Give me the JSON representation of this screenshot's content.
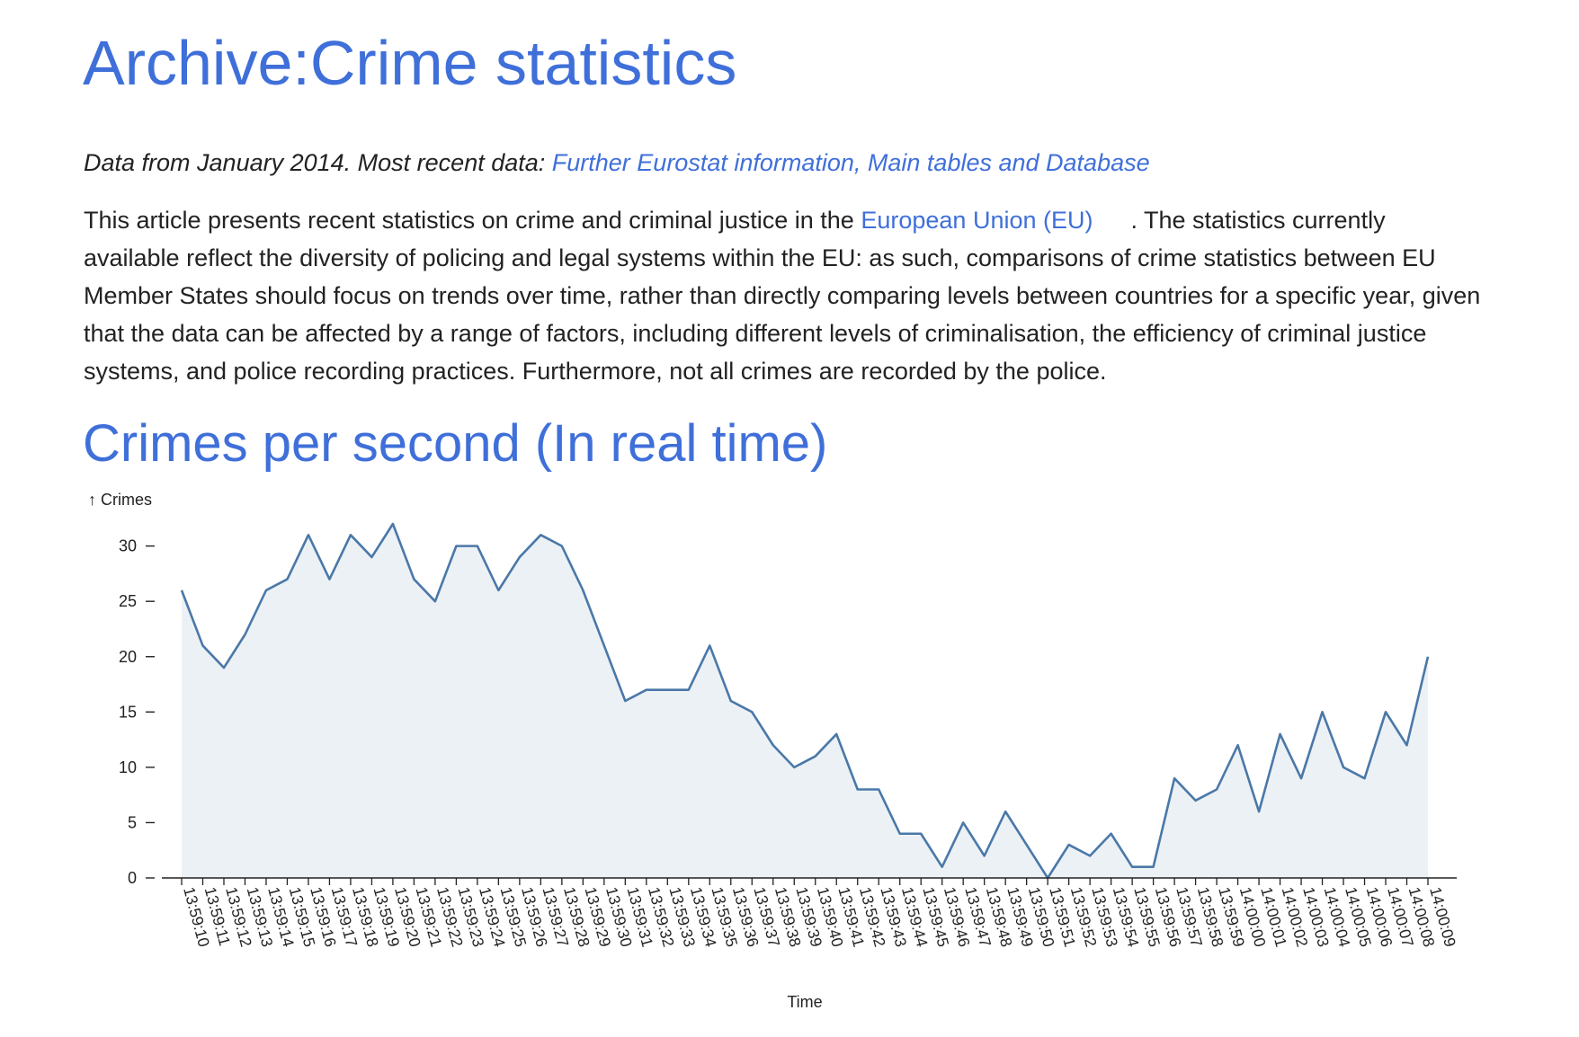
{
  "page": {
    "title": "Archive:Crime statistics",
    "source_prefix": "Data from January 2014. Most recent data: ",
    "source_link": "Further Eurostat information, Main tables and Database",
    "intro_before": "This article presents recent statistics on crime and criminal justice in the ",
    "intro_link": "European Union (EU)",
    "intro_after": ". The statistics currently available reflect the diversity of policing and legal systems within the EU: as such, comparisons of crime statistics between EU Member States should focus on trends over time, rather than directly comparing levels between countries for a specific year, given that the data can be affected by a range of factors, including different levels of criminalisation, the efficiency of criminal justice systems, and police recording practices. Furthermore, not all crimes are recorded by the police.",
    "chart_heading": "Crimes per second (In real time)"
  },
  "colors": {
    "heading": "#3f6fd9",
    "line": "#4a78a8",
    "area": "#ecf1f5"
  },
  "chart_data": {
    "type": "area",
    "title": "Crimes per second (In real time)",
    "xlabel": "Time",
    "ylabel": "↑ Crimes",
    "ylim": [
      0,
      32
    ],
    "yticks": [
      0,
      5,
      10,
      15,
      20,
      25,
      30
    ],
    "x": [
      "13:59:10",
      "13:59:11",
      "13:59:12",
      "13:59:13",
      "13:59:14",
      "13:59:15",
      "13:59:16",
      "13:59:17",
      "13:59:18",
      "13:59:19",
      "13:59:20",
      "13:59:21",
      "13:59:22",
      "13:59:23",
      "13:59:24",
      "13:59:25",
      "13:59:26",
      "13:59:27",
      "13:59:28",
      "13:59:29",
      "13:59:30",
      "13:59:31",
      "13:59:32",
      "13:59:33",
      "13:59:34",
      "13:59:35",
      "13:59:36",
      "13:59:37",
      "13:59:38",
      "13:59:39",
      "13:59:40",
      "13:59:41",
      "13:59:42",
      "13:59:43",
      "13:59:44",
      "13:59:45",
      "13:59:46",
      "13:59:47",
      "13:59:48",
      "13:59:49",
      "13:59:50",
      "13:59:51",
      "13:59:52",
      "13:59:53",
      "13:59:54",
      "13:59:55",
      "13:59:56",
      "13:59:57",
      "13:59:58",
      "13:59:59",
      "14:00:00",
      "14:00:01",
      "14:00:02",
      "14:00:03",
      "14:00:04",
      "14:00:05",
      "14:00:06",
      "14:00:07",
      "14:00:08",
      "14:00:09"
    ],
    "values": [
      26,
      21,
      19,
      22,
      26,
      27,
      31,
      27,
      31,
      29,
      32,
      27,
      25,
      30,
      30,
      26,
      29,
      31,
      30,
      26,
      21,
      16,
      17,
      17,
      17,
      21,
      16,
      15,
      12,
      10,
      11,
      13,
      8,
      8,
      4,
      4,
      1,
      5,
      2,
      6,
      3,
      0,
      3,
      2,
      4,
      1,
      1,
      9,
      7,
      8,
      12,
      6,
      13,
      9,
      15,
      10,
      9,
      15,
      12,
      20
    ],
    "grid": false,
    "legend": "none"
  }
}
